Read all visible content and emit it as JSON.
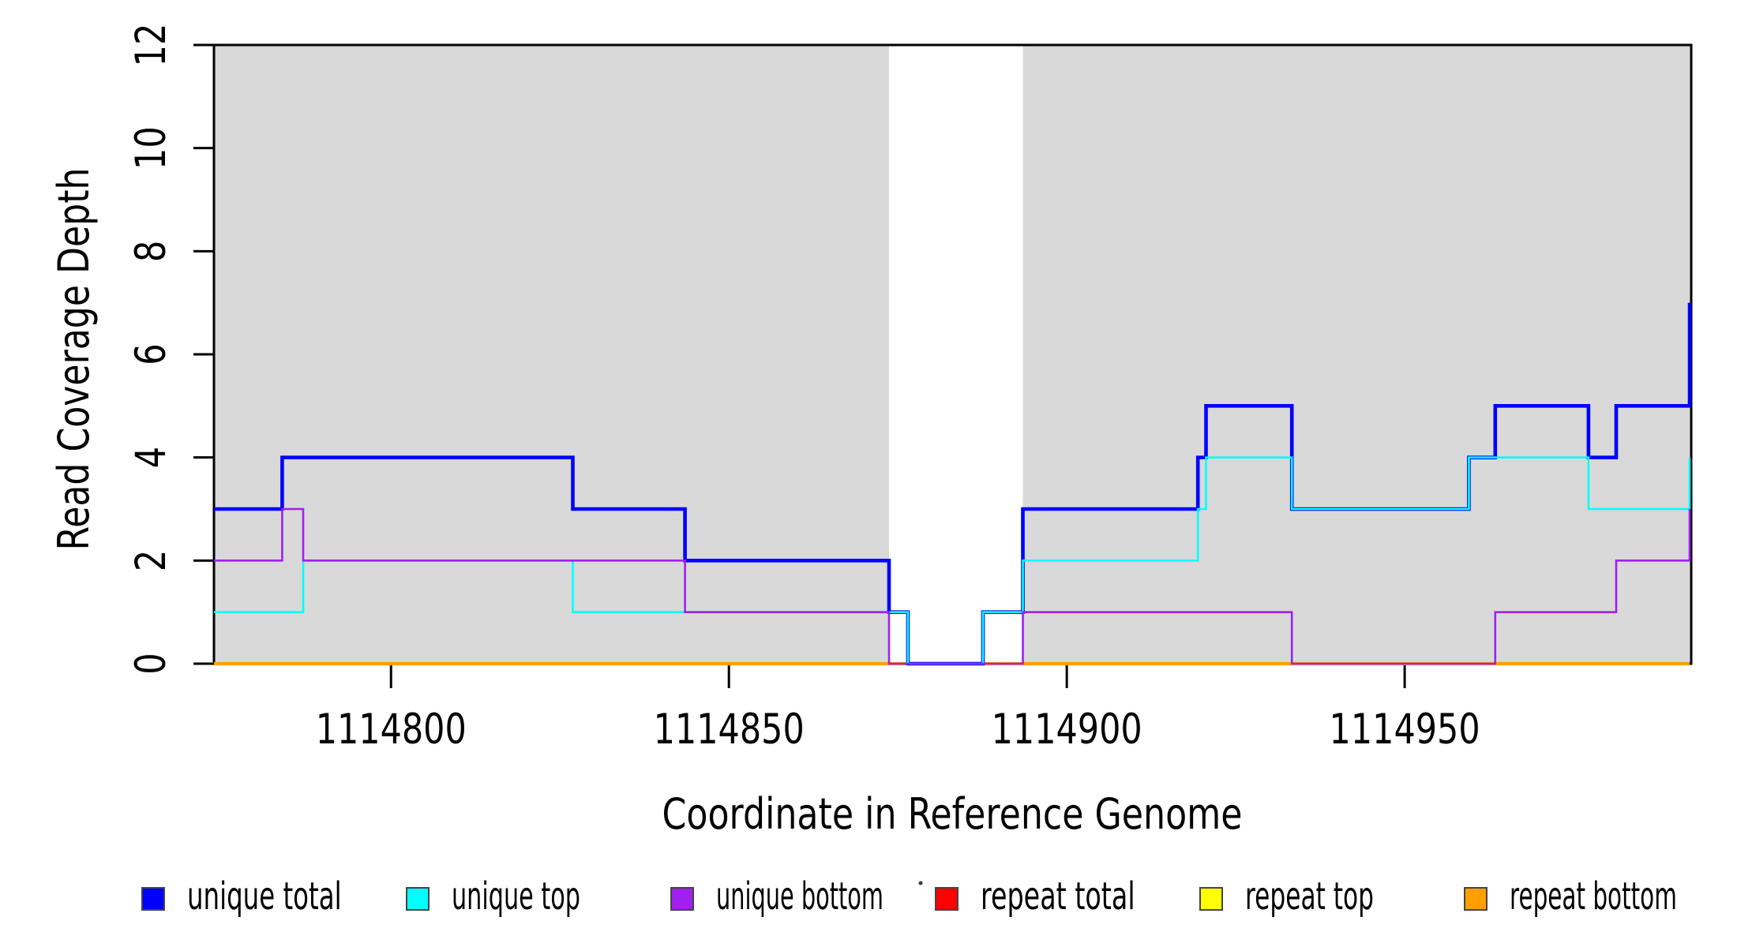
{
  "chart_data": {
    "type": "line",
    "subtype": "step-coverage",
    "title": "",
    "xlabel": "Coordinate in Reference Genome",
    "ylabel": "Read Coverage Depth",
    "xlim": [
      1114773.8,
      1114992.4
    ],
    "ylim": [
      0,
      12
    ],
    "x_ticks": [
      1114800,
      1114850,
      1114900,
      1114950
    ],
    "y_ticks": [
      0,
      2,
      4,
      6,
      8,
      10,
      12
    ],
    "grid": false,
    "box_color": "#000000",
    "shade_color": "#d9d9d9",
    "shaded_regions": [
      [
        1114773.8,
        1114873.7
      ],
      [
        1114893.5,
        1114992.4
      ]
    ],
    "step_boundaries": [
      1114773.8,
      1114783.9,
      1114787.0,
      1114826.9,
      1114843.5,
      1114873.7,
      1114876.5,
      1114887.6,
      1114893.5,
      1114919.4,
      1114920.6,
      1114933.3,
      1114959.5,
      1114963.4,
      1114977.2,
      1114981.3,
      1114992.4
    ],
    "series": [
      {
        "name": "repeat total",
        "color": "#ff0000",
        "lwd": 2.6,
        "values": [
          0,
          0,
          0,
          0,
          0,
          0,
          0,
          0,
          0,
          0,
          0,
          0,
          0,
          0,
          0,
          0
        ],
        "edge_end": 0
      },
      {
        "name": "repeat top",
        "color": "#ffff00",
        "lwd": 2.6,
        "values": [
          0,
          0,
          0,
          0,
          0,
          0,
          0,
          0,
          0,
          0,
          0,
          0,
          0,
          0,
          0,
          0
        ],
        "edge_end": 0
      },
      {
        "name": "repeat bottom",
        "color": "#ffa000",
        "lwd": 4.2,
        "values": [
          0,
          0,
          0,
          0,
          0,
          0,
          0,
          0,
          0,
          0,
          0,
          0,
          0,
          0,
          0,
          0
        ],
        "edge_end": 0
      },
      {
        "name": "unique total",
        "color": "#0000ff",
        "lwd": 4.6,
        "values": [
          3,
          4,
          4,
          3,
          2,
          1,
          0,
          1,
          3,
          4,
          5,
          3,
          4,
          5,
          4,
          5
        ],
        "edge_end": 7
      },
      {
        "name": "unique top",
        "color": "#00ffff",
        "lwd": 2.6,
        "values": [
          1,
          1,
          2,
          1,
          1,
          1,
          0,
          1,
          2,
          3,
          4,
          3,
          4,
          4,
          3,
          3
        ],
        "edge_end": 4
      },
      {
        "name": "unique bottom",
        "color": "#a020f0",
        "lwd": 2.6,
        "values": [
          2,
          3,
          2,
          2,
          1,
          0,
          0,
          0,
          1,
          1,
          1,
          0,
          0,
          1,
          1,
          2
        ],
        "edge_end": 3
      }
    ],
    "legend": {
      "position": "bottom",
      "entries": [
        {
          "label": "unique total",
          "color": "#0000ff"
        },
        {
          "label": "unique top",
          "color": "#00ffff"
        },
        {
          "label": "unique bottom",
          "color": "#a020f0"
        },
        {
          "label": "repeat total",
          "color": "#ff0000"
        },
        {
          "label": "repeat top",
          "color": "#ffff00"
        },
        {
          "label": "repeat bottom",
          "color": "#ffa000"
        }
      ]
    },
    "annotations": {
      "stray_dot": {
        "x": 1166,
        "y": 1119,
        "color": "#3a3a3a"
      }
    }
  }
}
